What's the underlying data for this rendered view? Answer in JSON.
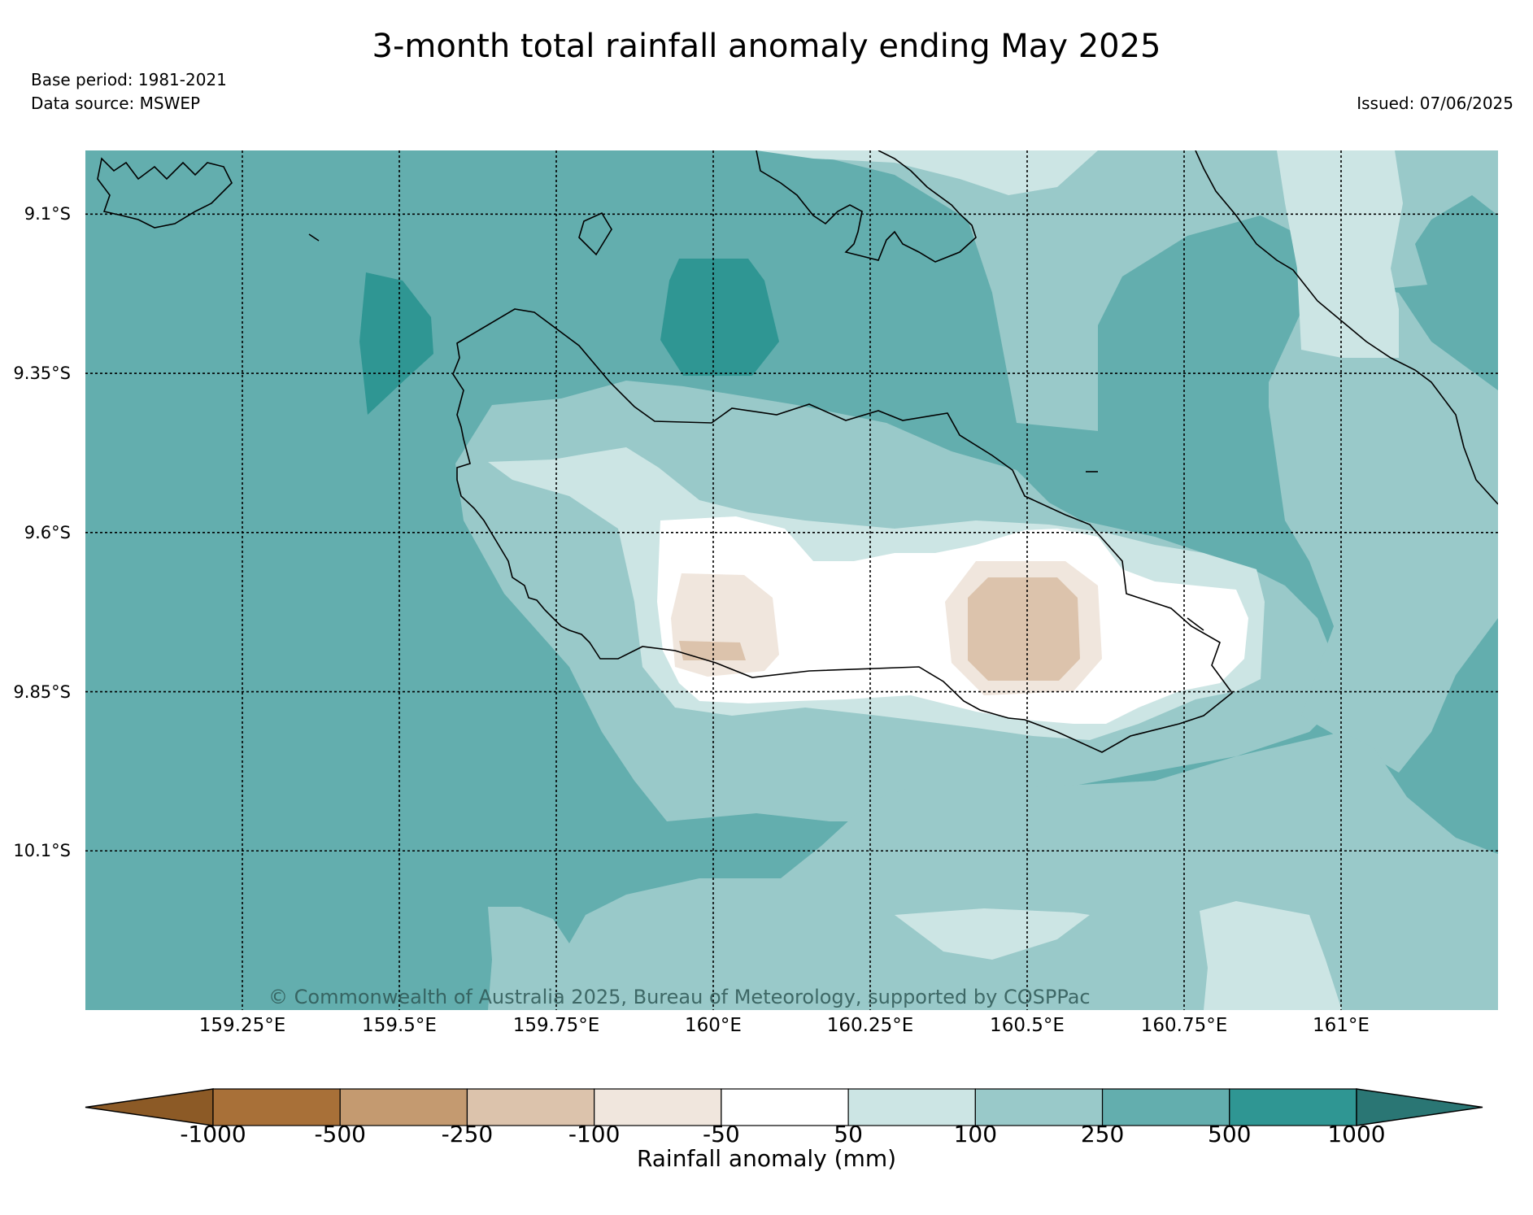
{
  "title": "3-month total rainfall anomaly ending May 2025",
  "base_period": "Base period: 1981-2021",
  "data_source": "Data source: MSWEP",
  "issued": "Issued: 07/06/2025",
  "copyright": "© Commonwealth of Australia 2025, Bureau of Meteorology, supported by COSPPac",
  "latitude_labels": [
    "9.1°S",
    "9.35°S",
    "9.6°S",
    "9.85°S",
    "10.1°S"
  ],
  "longitude_labels": [
    "159.25°E",
    "159.5°E",
    "159.75°E",
    "160°E",
    "160.25°E",
    "160.5°E",
    "160.75°E",
    "161°E"
  ],
  "colorbar": {
    "label": "Rainfall anomaly (mm)",
    "ticks": [
      "-1000",
      "-500",
      "-250",
      "-100",
      "-50",
      "50",
      "100",
      "250",
      "500",
      "1000"
    ],
    "colors": {
      "below_min": "#8c5a26",
      "bins": [
        "#a87038",
        "#c49a70",
        "#dcc3ac",
        "#f0e6dd",
        "#ffffff",
        "#cce5e4",
        "#99c9c9",
        "#63aeae",
        "#2f9693"
      ],
      "above_max": "#2a7674"
    }
  },
  "map": {
    "extent_lon": [
      159.0,
      161.25
    ],
    "extent_lat": [
      -9.0,
      -10.35
    ],
    "background_color": "#63aeae"
  }
}
